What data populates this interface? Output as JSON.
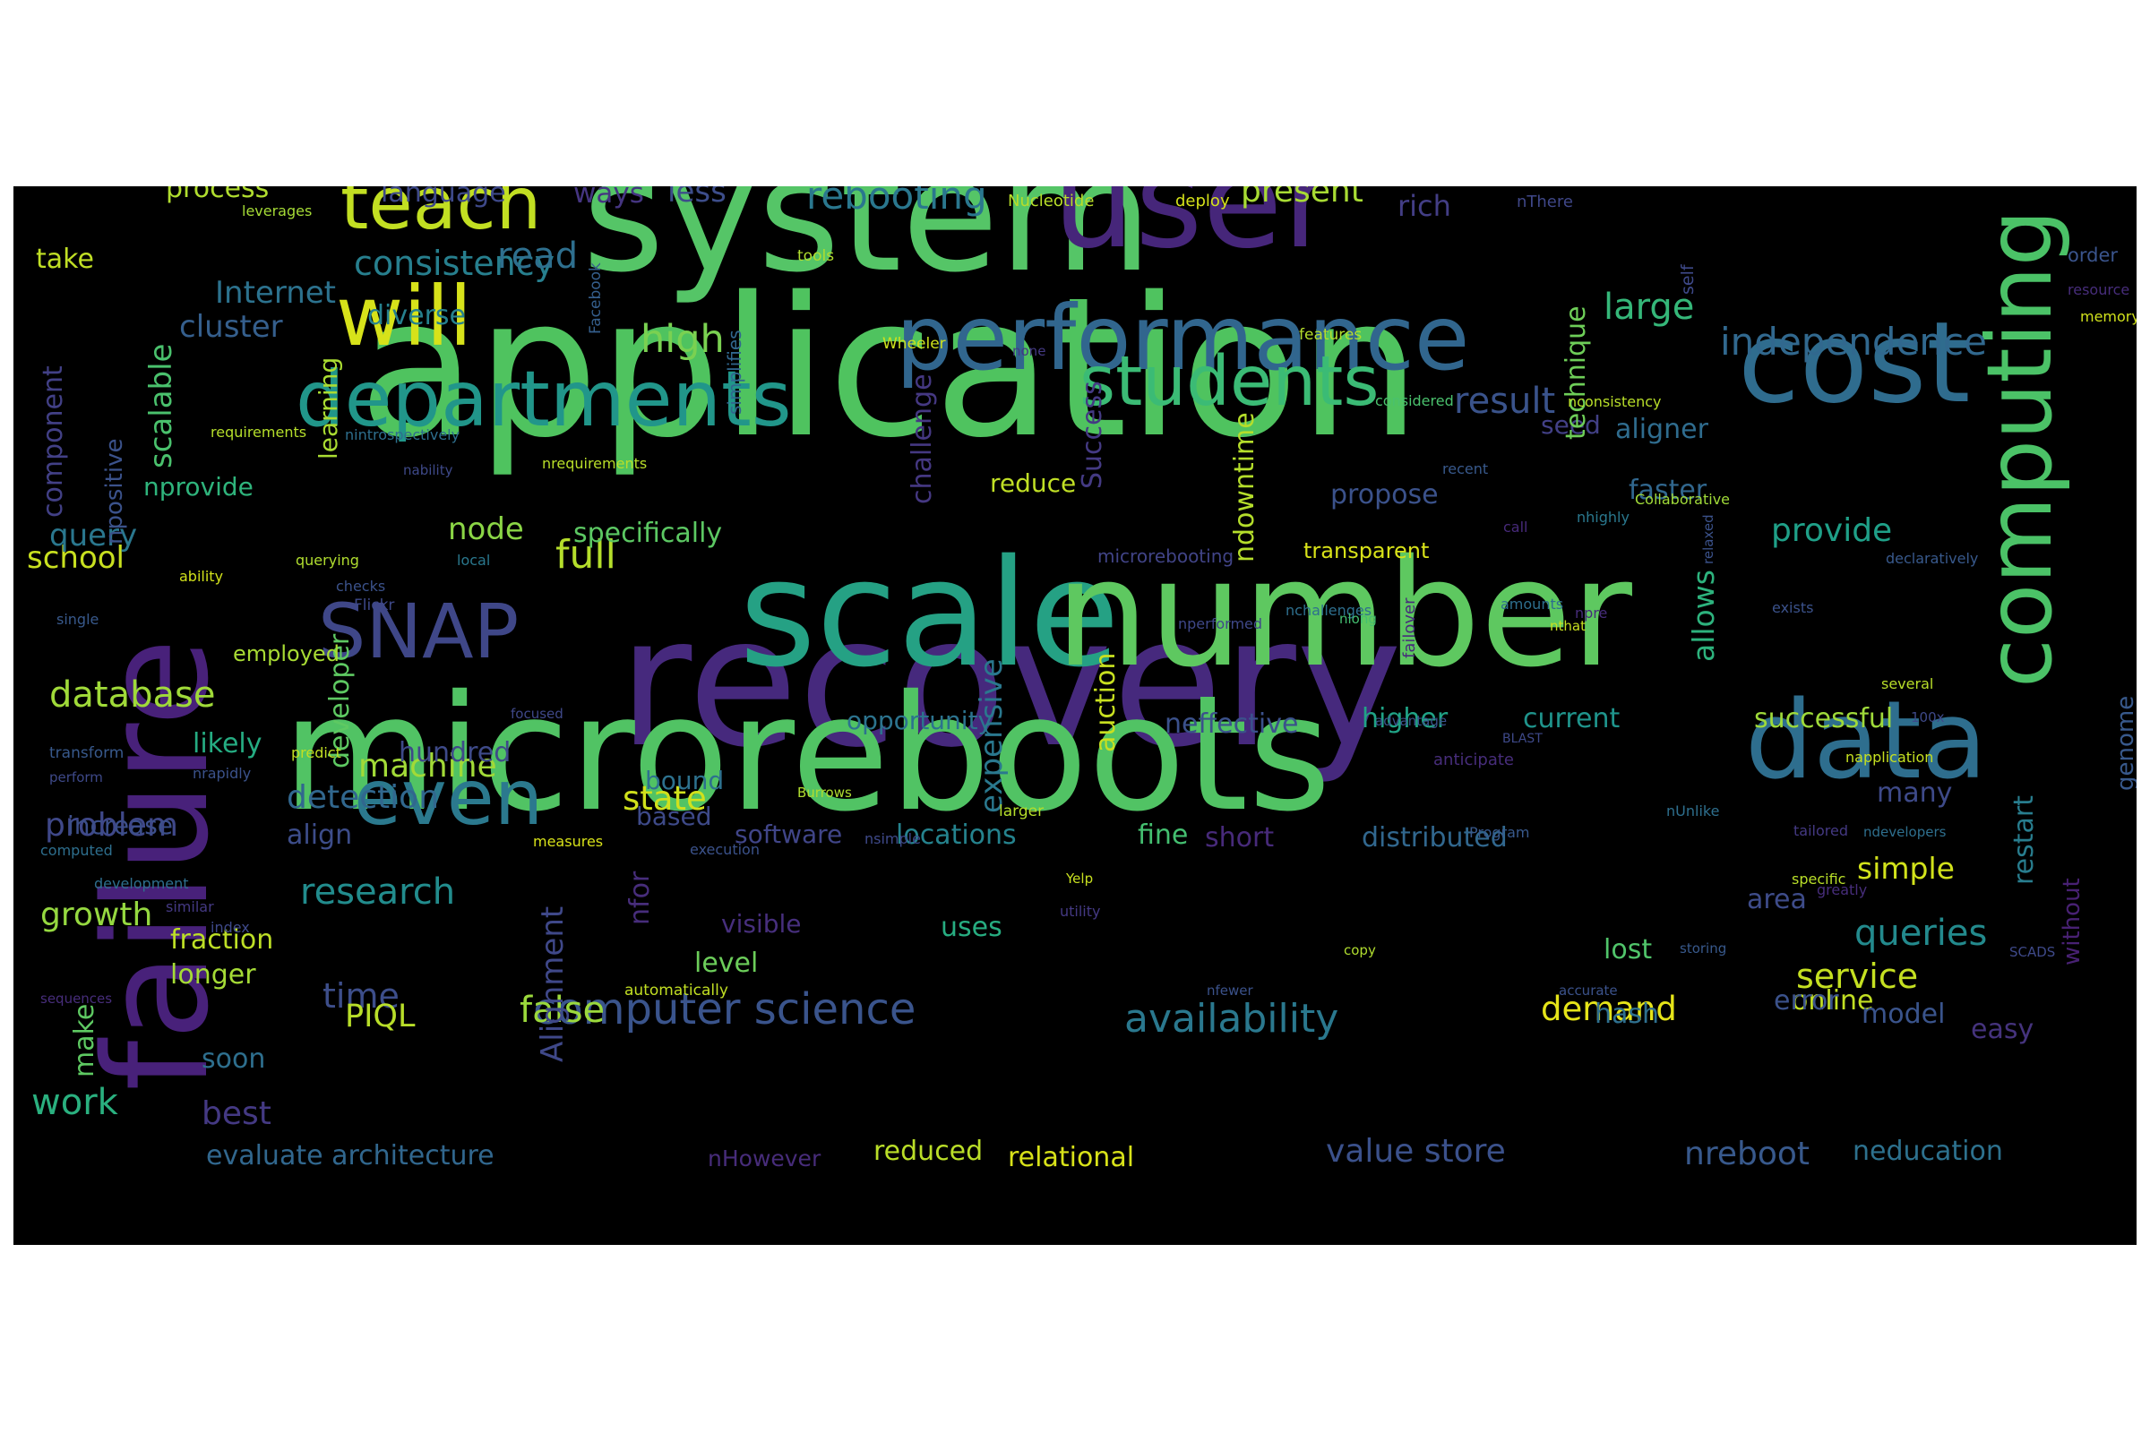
{
  "background": "#000000",
  "words": [
    {
      "text": "application",
      "color": "#4fc35f"
    },
    {
      "text": "system",
      "color": "#55c567"
    },
    {
      "text": "recovery",
      "color": "#46297d"
    },
    {
      "text": "failure",
      "color": "#48217a"
    },
    {
      "text": "microreboots",
      "color": "#51c364"
    },
    {
      "text": "user",
      "color": "#46267a"
    },
    {
      "text": "scale",
      "color": "#25a184"
    },
    {
      "text": "number",
      "color": "#5ec860"
    },
    {
      "text": "cost",
      "color": "#2f6c8e"
    },
    {
      "text": "data",
      "color": "#2e6e8e"
    },
    {
      "text": "performance",
      "color": "#31668e"
    },
    {
      "text": "computing",
      "color": "#4bc267"
    },
    {
      "text": "departments",
      "color": "#21968a"
    },
    {
      "text": "will",
      "color": "#d7e21a"
    },
    {
      "text": "teach",
      "color": "#c2df22"
    },
    {
      "text": "students",
      "color": "#3bbb75"
    },
    {
      "text": "SNAP",
      "color": "#3f4788"
    },
    {
      "text": "even",
      "color": "#2b798e"
    },
    {
      "text": "computer science",
      "color": "#3a548c"
    },
    {
      "text": "independence",
      "color": "#31688e"
    },
    {
      "text": "availability",
      "color": "#2a788e"
    },
    {
      "text": "database",
      "color": "#a0da39"
    },
    {
      "text": "research",
      "color": "#228c8d"
    },
    {
      "text": "rebooting",
      "color": "#2a778e"
    },
    {
      "text": "Internet",
      "color": "#2c728e"
    },
    {
      "text": "consistency",
      "color": "#277f8e"
    },
    {
      "text": "cluster",
      "color": "#355f8d"
    },
    {
      "text": "high",
      "color": "#7ad151"
    },
    {
      "text": "result",
      "color": "#3a538b"
    },
    {
      "text": "large",
      "color": "#35b779"
    },
    {
      "text": "read",
      "color": "#2e6f8e"
    },
    {
      "text": "language",
      "color": "#3e4989"
    },
    {
      "text": "present",
      "color": "#a8db34"
    },
    {
      "text": "full",
      "color": "#b5de2b"
    },
    {
      "text": "detection",
      "color": "#31678e"
    },
    {
      "text": "machine",
      "color": "#a2da37"
    },
    {
      "text": "time",
      "color": "#3d4e8a"
    },
    {
      "text": "false",
      "color": "#9bd93c"
    },
    {
      "text": "PIQL",
      "color": "#b8de29"
    },
    {
      "text": "service",
      "color": "#c5e021"
    },
    {
      "text": "demand",
      "color": "#e5e419"
    },
    {
      "text": "queries",
      "color": "#238a8d"
    },
    {
      "text": "provide",
      "color": "#1fa088"
    },
    {
      "text": "simple",
      "color": "#d2e21b"
    },
    {
      "text": "state",
      "color": "#d0e11c"
    },
    {
      "text": "problem",
      "color": "#3f4889"
    },
    {
      "text": "growth",
      "color": "#95d840"
    },
    {
      "text": "work",
      "color": "#2ab07f"
    },
    {
      "text": "best",
      "color": "#443983"
    },
    {
      "text": "evaluate architecture",
      "color": "#31678e"
    },
    {
      "text": "value store",
      "color": "#3b518b"
    },
    {
      "text": "nreboot",
      "color": "#38598c"
    },
    {
      "text": "relational",
      "color": "#d8e219"
    },
    {
      "text": "reduced",
      "color": "#bade28"
    },
    {
      "text": "nHowever",
      "color": "#472c7a"
    },
    {
      "text": "neducation",
      "color": "#2d718e"
    },
    {
      "text": "school",
      "color": "#c8e020"
    },
    {
      "text": "query",
      "color": "#2a778e"
    },
    {
      "text": "node",
      "color": "#8bd646"
    },
    {
      "text": "specifically",
      "color": "#5cc863"
    },
    {
      "text": "less",
      "color": "#3d4d8a"
    },
    {
      "text": "ways",
      "color": "#453581"
    },
    {
      "text": "process",
      "color": "#b0dd2f"
    },
    {
      "text": "rich",
      "color": "#433e85"
    },
    {
      "text": "aligner",
      "color": "#2f6c8e"
    },
    {
      "text": "faster",
      "color": "#31678e"
    },
    {
      "text": "allows",
      "color": "#2db27d"
    },
    {
      "text": "propose",
      "color": "#3b528b"
    },
    {
      "text": "seed",
      "color": "#424086"
    },
    {
      "text": "higher",
      "color": "#20a386"
    },
    {
      "text": "current",
      "color": "#1f948c"
    },
    {
      "text": "successful",
      "color": "#9fda3a"
    },
    {
      "text": "many",
      "color": "#3e4a89"
    },
    {
      "text": "restart",
      "color": "#287d8e"
    },
    {
      "text": "opportunity",
      "color": "#2c738e"
    },
    {
      "text": "neffective",
      "color": "#3b518b"
    },
    {
      "text": "bound",
      "color": "#2d718e"
    },
    {
      "text": "based",
      "color": "#3e4a89"
    },
    {
      "text": "locations",
      "color": "#25838e"
    },
    {
      "text": "fine",
      "color": "#44bf70"
    },
    {
      "text": "software",
      "color": "#404588"
    },
    {
      "text": "short",
      "color": "#472a7a"
    },
    {
      "text": "distributed",
      "color": "#31678e"
    },
    {
      "text": "area",
      "color": "#3e4c8a"
    },
    {
      "text": "uses",
      "color": "#27ad81"
    },
    {
      "text": "level",
      "color": "#6ccd5a"
    },
    {
      "text": "lost",
      "color": "#50c46a"
    },
    {
      "text": "hash",
      "color": "#2e6f8e"
    },
    {
      "text": "online",
      "color": "#c2df23"
    },
    {
      "text": "easy",
      "color": "#45337d"
    },
    {
      "text": "model",
      "color": "#3a548c"
    },
    {
      "text": "error",
      "color": "#3b528b"
    },
    {
      "text": "without",
      "color": "#482173"
    },
    {
      "text": "genome",
      "color": "#38598c"
    },
    {
      "text": "visible",
      "color": "#472f7d"
    },
    {
      "text": "expensive",
      "color": "#2a788e"
    },
    {
      "text": "auction",
      "color": "#c8e020"
    },
    {
      "text": "developer",
      "color": "#5ec962"
    },
    {
      "text": "diverse",
      "color": "#26818e"
    },
    {
      "text": "scalable",
      "color": "#4ac16d"
    },
    {
      "text": "component",
      "color": "#424086"
    },
    {
      "text": "npositive",
      "color": "#3b528b"
    },
    {
      "text": "take",
      "color": "#c0df25"
    },
    {
      "text": "learning",
      "color": "#aadc32"
    },
    {
      "text": "technique",
      "color": "#6ece58"
    },
    {
      "text": "challenge",
      "color": "#453882"
    },
    {
      "text": "Success",
      "color": "#443a83"
    },
    {
      "text": "ndowntime",
      "color": "#b5de2b"
    },
    {
      "text": "reduce",
      "color": "#c0df25"
    },
    {
      "text": "nprovide",
      "color": "#2fb47c"
    },
    {
      "text": "likely",
      "color": "#25ac82"
    },
    {
      "text": "increase",
      "color": "#3c4f8a"
    },
    {
      "text": "align",
      "color": "#3d4d8a"
    },
    {
      "text": "fraction",
      "color": "#bddf26"
    },
    {
      "text": "longer",
      "color": "#a5db36"
    },
    {
      "text": "soon",
      "color": "#2e6f8e"
    },
    {
      "text": "make",
      "color": "#5ec962"
    },
    {
      "text": "hundred",
      "color": "#3e4a89"
    },
    {
      "text": "nfor",
      "color": "#472d7b"
    },
    {
      "text": "Alignment",
      "color": "#3f4889"
    },
    {
      "text": "employed",
      "color": "#a8db34"
    },
    {
      "text": "transparent",
      "color": "#d8e219"
    },
    {
      "text": "microrebooting",
      "color": "#414487"
    },
    {
      "text": "Nucleotide",
      "color": "#b8de29"
    },
    {
      "text": "leverages",
      "color": "#a5db36"
    },
    {
      "text": "deploy",
      "color": "#d5e21a"
    },
    {
      "text": "tools",
      "color": "#b0dd2f"
    },
    {
      "text": "nThere",
      "color": "#3f4788"
    },
    {
      "text": "order",
      "color": "#3a548c"
    },
    {
      "text": "resource",
      "color": "#472d7b"
    },
    {
      "text": "memory",
      "color": "#d0e11c"
    },
    {
      "text": "self",
      "color": "#3e4989"
    },
    {
      "text": "features",
      "color": "#b5de2b"
    },
    {
      "text": "Wheeler",
      "color": "#cde11d"
    },
    {
      "text": "none",
      "color": "#443983"
    },
    {
      "text": "simplifies",
      "color": "#31678e"
    },
    {
      "text": "nintrospectively",
      "color": "#2e6f8e"
    },
    {
      "text": "Facebook",
      "color": "#355f8d"
    },
    {
      "text": "considered",
      "color": "#4ac16d"
    },
    {
      "text": "nconsistency",
      "color": "#b8de29"
    },
    {
      "text": "requirements",
      "color": "#b5de2b"
    },
    {
      "text": "nability",
      "color": "#3e4989"
    },
    {
      "text": "nrequirements",
      "color": "#b8de29"
    },
    {
      "text": "recent",
      "color": "#38598c"
    },
    {
      "text": "Collaborative",
      "color": "#a0da39"
    },
    {
      "text": "nhighly",
      "color": "#2a788e"
    },
    {
      "text": "call",
      "color": "#472a7a"
    },
    {
      "text": "declaratively",
      "color": "#38598c"
    },
    {
      "text": "ability",
      "color": "#d2e21b"
    },
    {
      "text": "querying",
      "color": "#b0dd2f"
    },
    {
      "text": "checks",
      "color": "#3b528b"
    },
    {
      "text": "local",
      "color": "#2a788e"
    },
    {
      "text": "single",
      "color": "#38598c"
    },
    {
      "text": "Flickr",
      "color": "#3e4989"
    },
    {
      "text": "nchallenges",
      "color": "#2e6f8e"
    },
    {
      "text": "nperformed",
      "color": "#3f4889"
    },
    {
      "text": "amounts",
      "color": "#2e6f8e"
    },
    {
      "text": "npre",
      "color": "#472d7b"
    },
    {
      "text": "relaxed",
      "color": "#3b528b"
    },
    {
      "text": "exists",
      "color": "#3b528b"
    },
    {
      "text": "nlong",
      "color": "#44bf70"
    },
    {
      "text": "failover",
      "color": "#472d7b"
    },
    {
      "text": "nthat",
      "color": "#c8e020"
    },
    {
      "text": "BLAST",
      "color": "#3e4989"
    },
    {
      "text": "several",
      "color": "#b8de29"
    },
    {
      "text": "focused",
      "color": "#3f4889"
    },
    {
      "text": "advantage",
      "color": "#3b528b"
    },
    {
      "text": "100x",
      "color": "#3e4989"
    },
    {
      "text": "transform",
      "color": "#38598c"
    },
    {
      "text": "predict",
      "color": "#c2df23"
    },
    {
      "text": "anticipate",
      "color": "#472d7b"
    },
    {
      "text": "napplication",
      "color": "#c5e021"
    },
    {
      "text": "perform",
      "color": "#3e4989"
    },
    {
      "text": "nrapidly",
      "color": "#3b528b"
    },
    {
      "text": "Burrows",
      "color": "#b0dd2f"
    },
    {
      "text": "nUnlike",
      "color": "#2e6f8e"
    },
    {
      "text": "larger",
      "color": "#b5de2b"
    },
    {
      "text": "measures",
      "color": "#d8e219"
    },
    {
      "text": "nsimple",
      "color": "#3e4989"
    },
    {
      "text": "Program",
      "color": "#38598c"
    },
    {
      "text": "ndevelopers",
      "color": "#2e6f8e"
    },
    {
      "text": "tailored",
      "color": "#443983"
    },
    {
      "text": "computed",
      "color": "#2e6f8e"
    },
    {
      "text": "execution",
      "color": "#3b528b"
    },
    {
      "text": "specific",
      "color": "#b8de29"
    },
    {
      "text": "development",
      "color": "#2e6f8e"
    },
    {
      "text": "Yelp",
      "color": "#c8e020"
    },
    {
      "text": "greatly",
      "color": "#472d7b"
    },
    {
      "text": "similar",
      "color": "#443983"
    },
    {
      "text": "utility",
      "color": "#443983"
    },
    {
      "text": "index",
      "color": "#3e4989"
    },
    {
      "text": "storing",
      "color": "#38598c"
    },
    {
      "text": "SCADS",
      "color": "#3e4989"
    },
    {
      "text": "copy",
      "color": "#b0dd2f"
    },
    {
      "text": "nfewer",
      "color": "#3b528b"
    },
    {
      "text": "accurate",
      "color": "#3b528b"
    },
    {
      "text": "sequences",
      "color": "#472d7b"
    },
    {
      "text": "automatically",
      "color": "#c2df23"
    },
    {
      "text": "server",
      "color": "#b5de2b"
    }
  ]
}
